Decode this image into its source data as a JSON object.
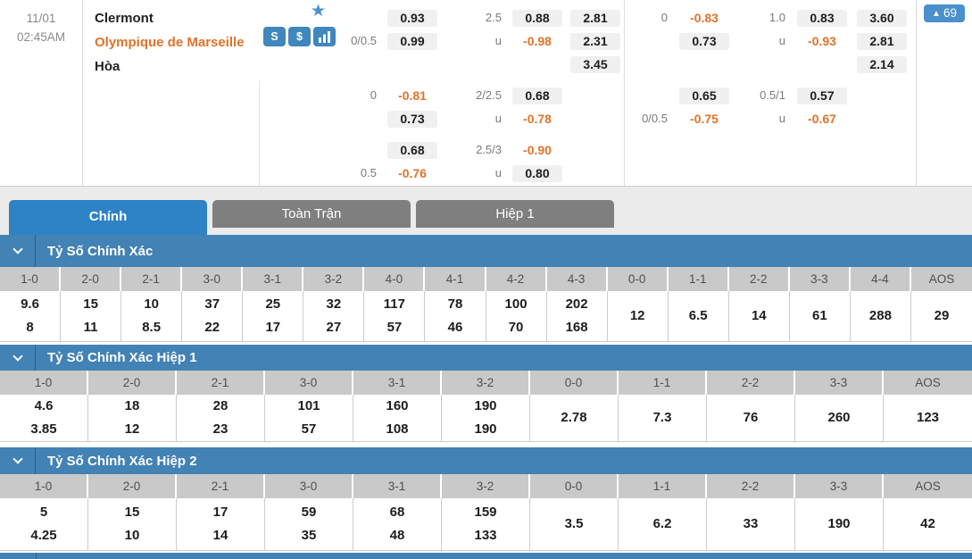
{
  "match": {
    "date": "11/01",
    "time": "02:45AM",
    "teams": {
      "home": "Clermont",
      "away": "Olympique de Marseille",
      "draw": "Hòa"
    },
    "action_icons": [
      {
        "id": "layers",
        "glyph": "S"
      },
      {
        "id": "dollar",
        "glyph": "$"
      },
      {
        "id": "bar-chart",
        "glyph": ""
      }
    ],
    "badge": {
      "arrow": "▲",
      "count": "69"
    }
  },
  "odds": {
    "groups": [
      {
        "side": "left",
        "rows": [
          {
            "hdp": [
              {
                "l": "",
                "v": "0.93"
              },
              {
                "l": "0/0.5",
                "v": "0.99"
              }
            ],
            "ou": [
              {
                "l": "2.5",
                "v": "0.88"
              },
              {
                "l": "u",
                "v": "-0.98"
              }
            ],
            "x12": [
              "2.81",
              "2.31",
              "3.45"
            ]
          },
          {
            "hdp": [
              {
                "l": "0",
                "v": "-0.81"
              },
              {
                "l": "",
                "v": "0.73"
              }
            ],
            "ou": [
              {
                "l": "2/2.5",
                "v": "0.68"
              },
              {
                "l": "u",
                "v": "-0.78"
              }
            ],
            "x12": []
          },
          {
            "hdp": [
              {
                "l": "",
                "v": "0.68"
              },
              {
                "l": "0.5",
                "v": "-0.76"
              }
            ],
            "ou": [
              {
                "l": "2.5/3",
                "v": "-0.90"
              },
              {
                "l": "u",
                "v": "0.80"
              }
            ],
            "x12": []
          }
        ]
      },
      {
        "side": "right",
        "rows": [
          {
            "hdp": [
              {
                "l": "0",
                "v": "-0.83"
              },
              {
                "l": "",
                "v": "0.73"
              }
            ],
            "ou": [
              {
                "l": "1.0",
                "v": "0.83"
              },
              {
                "l": "u",
                "v": "-0.93"
              }
            ],
            "x12": [
              "3.60",
              "2.81",
              "2.14"
            ]
          },
          {
            "hdp": [
              {
                "l": "",
                "v": "0.65"
              },
              {
                "l": "0/0.5",
                "v": "-0.75"
              }
            ],
            "ou": [
              {
                "l": "0.5/1",
                "v": "0.57"
              },
              {
                "l": "u",
                "v": "-0.67"
              }
            ],
            "x12": []
          }
        ]
      }
    ]
  },
  "tabs": [
    {
      "id": "chinh",
      "label": "Chính",
      "active": true
    },
    {
      "id": "toan-tran",
      "label": "Toàn Trận",
      "active": false
    },
    {
      "id": "hiep-1",
      "label": "Hiệp 1",
      "active": false
    }
  ],
  "score_sections": [
    {
      "id": "full-time",
      "title": "Tỷ Số Chính Xác",
      "columns": [
        {
          "score": "1-0",
          "values": [
            "9.6",
            "8"
          ]
        },
        {
          "score": "2-0",
          "values": [
            "15",
            "11"
          ]
        },
        {
          "score": "2-1",
          "values": [
            "10",
            "8.5"
          ]
        },
        {
          "score": "3-0",
          "values": [
            "37",
            "22"
          ]
        },
        {
          "score": "3-1",
          "values": [
            "25",
            "17"
          ]
        },
        {
          "score": "3-2",
          "values": [
            "32",
            "27"
          ]
        },
        {
          "score": "4-0",
          "values": [
            "117",
            "57"
          ]
        },
        {
          "score": "4-1",
          "values": [
            "78",
            "46"
          ]
        },
        {
          "score": "4-2",
          "values": [
            "100",
            "70"
          ]
        },
        {
          "score": "4-3",
          "values": [
            "202",
            "168"
          ]
        },
        {
          "score": "0-0",
          "values": [
            "12"
          ]
        },
        {
          "score": "1-1",
          "values": [
            "6.5"
          ]
        },
        {
          "score": "2-2",
          "values": [
            "14"
          ]
        },
        {
          "score": "3-3",
          "values": [
            "61"
          ]
        },
        {
          "score": "4-4",
          "values": [
            "288"
          ]
        },
        {
          "score": "AOS",
          "values": [
            "29"
          ]
        }
      ]
    },
    {
      "id": "half-1",
      "title": "Tỷ Số Chính Xác Hiệp 1",
      "columns": [
        {
          "score": "1-0",
          "values": [
            "4.6",
            "3.85"
          ]
        },
        {
          "score": "2-0",
          "values": [
            "18",
            "12"
          ]
        },
        {
          "score": "2-1",
          "values": [
            "28",
            "23"
          ]
        },
        {
          "score": "3-0",
          "values": [
            "101",
            "57"
          ]
        },
        {
          "score": "3-1",
          "values": [
            "160",
            "108"
          ]
        },
        {
          "score": "3-2",
          "values": [
            "190",
            "190"
          ]
        },
        {
          "score": "0-0",
          "values": [
            "2.78"
          ]
        },
        {
          "score": "1-1",
          "values": [
            "7.3"
          ]
        },
        {
          "score": "2-2",
          "values": [
            "76"
          ]
        },
        {
          "score": "3-3",
          "values": [
            "260"
          ]
        },
        {
          "score": "AOS",
          "values": [
            "123"
          ]
        }
      ]
    },
    {
      "id": "half-2",
      "title": "Tỷ Số Chính Xác Hiệp 2",
      "columns": [
        {
          "score": "1-0",
          "values": [
            "5",
            "4.25"
          ]
        },
        {
          "score": "2-0",
          "values": [
            "15",
            "10"
          ]
        },
        {
          "score": "2-1",
          "values": [
            "17",
            "14"
          ]
        },
        {
          "score": "3-0",
          "values": [
            "59",
            "35"
          ]
        },
        {
          "score": "3-1",
          "values": [
            "68",
            "48"
          ]
        },
        {
          "score": "3-2",
          "values": [
            "159",
            "133"
          ]
        },
        {
          "score": "0-0",
          "values": [
            "3.5"
          ]
        },
        {
          "score": "1-1",
          "values": [
            "6.2"
          ]
        },
        {
          "score": "2-2",
          "values": [
            "33"
          ]
        },
        {
          "score": "3-3",
          "values": [
            "190"
          ]
        },
        {
          "score": "AOS",
          "values": [
            "42"
          ]
        }
      ]
    }
  ],
  "colors": {
    "accent_blue": "#2d83c5",
    "section_header_blue": "#4282b4",
    "icon_blue": "#3f87bd",
    "badge_blue": "#4a90cc",
    "negative_orange": "#e0732a",
    "table_header_gray": "#c9c9c9",
    "tab_gray": "#7f7f7f"
  }
}
